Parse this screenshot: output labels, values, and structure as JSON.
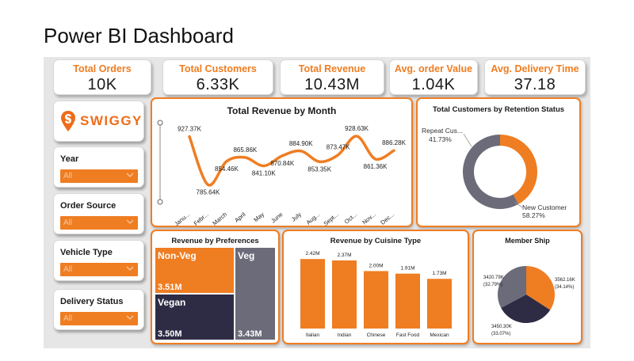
{
  "page": {
    "title": "Power BI Dashboard"
  },
  "kpis": [
    {
      "label": "Total Orders",
      "value": "10K"
    },
    {
      "label": "Total Customers",
      "value": "6.33K"
    },
    {
      "label": "Total Revenue",
      "value": "10.43M"
    },
    {
      "label": "Avg. order Value",
      "value": "1.04K"
    },
    {
      "label": "Avg. Delivery Time",
      "value": "37.18"
    }
  ],
  "brand": {
    "name": "SWIGGY",
    "logo_icon": "swiggy-pin-icon",
    "color": "#ef6c1a"
  },
  "slicers": [
    {
      "label": "Year",
      "value": "All"
    },
    {
      "label": "Order Source",
      "value": "All"
    },
    {
      "label": "Vehicle Type",
      "value": "All"
    },
    {
      "label": "Delivery Status",
      "value": "All"
    }
  ],
  "colors": {
    "accent": "#ef7d22",
    "dark": "#2e2c45",
    "gray": "#6b6b79",
    "gray_light": "#5f5f6b"
  },
  "chart_data": [
    {
      "id": "revenue-by-month",
      "type": "line",
      "title": "Total Revenue by Month",
      "categories": [
        "Janu...",
        "Febr...",
        "March",
        "April",
        "May",
        "June",
        "July",
        "Aug...",
        "Sept...",
        "Oct...",
        "Nov...",
        "Dec..."
      ],
      "values": [
        927.37,
        785.64,
        854.46,
        865.86,
        841.1,
        870.84,
        884.9,
        853.35,
        873.47,
        928.63,
        861.36,
        886.28
      ],
      "labels": [
        "927.37K",
        "785.64K",
        "854.46K",
        "865.86K",
        "841.10K",
        "870.84K",
        "884.90K",
        "853.35K",
        "873.47K",
        "928.63K",
        "861.36K",
        "886.28K"
      ],
      "unit": "K",
      "ylim": [
        770,
        945
      ],
      "slider_handle_icon": "range-slider-icon"
    },
    {
      "id": "customers-by-retention",
      "type": "donut",
      "title": "Total Customers by Retention Status",
      "slices": [
        {
          "name": "Repeat Cus...",
          "value": 41.73,
          "label": "41.73%",
          "color": "#ef7d22"
        },
        {
          "name": "New Customer",
          "value": 58.27,
          "label": "58.27%",
          "color": "#6b6b79"
        }
      ]
    },
    {
      "id": "revenue-by-preferences",
      "type": "treemap",
      "title": "Revenue by Preferences",
      "items": [
        {
          "name": "Non-Veg",
          "value": 3.51,
          "label": "3.51M",
          "color": "#ef7d22"
        },
        {
          "name": "Vegan",
          "value": 3.5,
          "label": "3.50M",
          "color": "#2e2c45"
        },
        {
          "name": "Veg",
          "value": 3.43,
          "label": "3.43M",
          "color": "#6b6b79"
        }
      ]
    },
    {
      "id": "revenue-by-cuisine",
      "type": "bar",
      "title": "Revenue by Cuisine Type",
      "categories": [
        "Italian",
        "Indian",
        "Chinese",
        "Fast Food",
        "Mexican"
      ],
      "values": [
        2.42,
        2.37,
        2.0,
        1.91,
        1.73
      ],
      "labels": [
        "2.42M",
        "2.37M",
        "2.00M",
        "1.91M",
        "1.73M"
      ],
      "ylim": [
        0,
        2.7
      ]
    },
    {
      "id": "membership",
      "type": "pie",
      "title": "Member Ship",
      "slices": [
        {
          "value": 3562.16,
          "label": "3562.16K",
          "pct": "(34.14%)",
          "color": "#ef7d22"
        },
        {
          "value": 3450.3,
          "label": "3450.30K",
          "pct": "(33.07%)",
          "color": "#2e2c45"
        },
        {
          "value": 3420.79,
          "label": "3420.79K",
          "pct": "(32.79%)",
          "color": "#6b6b79"
        }
      ]
    }
  ]
}
